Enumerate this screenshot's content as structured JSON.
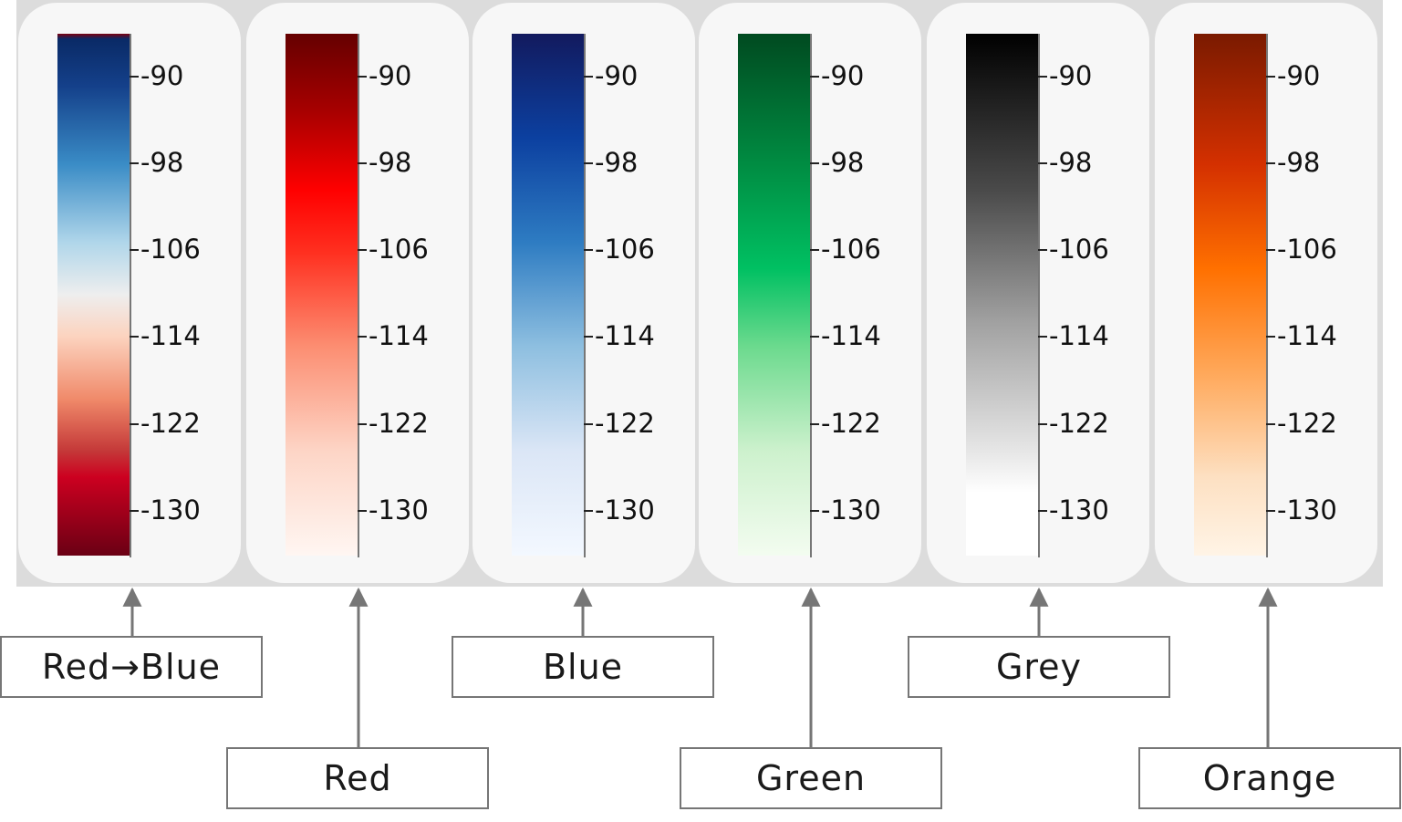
{
  "ticks": [
    "-90",
    "-98",
    "-106",
    "-114",
    "-122",
    "-130"
  ],
  "colorbars": [
    {
      "label": "Red→Blue",
      "stops": [
        [
          0,
          "#7a0010"
        ],
        [
          0.01,
          "#0a2a66"
        ],
        [
          0.1,
          "#14408a"
        ],
        [
          0.25,
          "#3a8cc6"
        ],
        [
          0.4,
          "#b0d6ea"
        ],
        [
          0.5,
          "#eeeeee"
        ],
        [
          0.58,
          "#fcd3bf"
        ],
        [
          0.7,
          "#f08a6a"
        ],
        [
          0.8,
          "#c43838"
        ],
        [
          0.85,
          "#cc0020"
        ],
        [
          1,
          "#6a0014"
        ]
      ]
    },
    {
      "label": "Red",
      "stops": [
        [
          0,
          "#650000"
        ],
        [
          0.15,
          "#a80000"
        ],
        [
          0.3,
          "#ff0000"
        ],
        [
          0.42,
          "#ff3020"
        ],
        [
          0.6,
          "#fc8e72"
        ],
        [
          0.8,
          "#fdd5c6"
        ],
        [
          1,
          "#fff6f2"
        ]
      ]
    },
    {
      "label": "Blue",
      "stops": [
        [
          0,
          "#121a5e"
        ],
        [
          0.2,
          "#0c40a0"
        ],
        [
          0.4,
          "#2e7cc2"
        ],
        [
          0.6,
          "#8ebfe0"
        ],
        [
          0.8,
          "#dbe6f6"
        ],
        [
          1,
          "#f3f8ff"
        ]
      ]
    },
    {
      "label": "Green",
      "stops": [
        [
          0,
          "#004a20"
        ],
        [
          0.25,
          "#008c42"
        ],
        [
          0.45,
          "#00c062"
        ],
        [
          0.6,
          "#6cda8e"
        ],
        [
          0.8,
          "#cdf1cd"
        ],
        [
          1,
          "#f3fcf0"
        ]
      ]
    },
    {
      "label": "Grey",
      "stops": [
        [
          0,
          "#000000"
        ],
        [
          0.3,
          "#4a4a4a"
        ],
        [
          0.55,
          "#a0a0a0"
        ],
        [
          0.8,
          "#e6e6e6"
        ],
        [
          0.88,
          "#ffffff"
        ],
        [
          1,
          "#ffffff"
        ]
      ]
    },
    {
      "label": "Orange",
      "stops": [
        [
          0,
          "#7a1a00"
        ],
        [
          0.25,
          "#d43000"
        ],
        [
          0.45,
          "#ff7000"
        ],
        [
          0.65,
          "#ffa85a"
        ],
        [
          0.85,
          "#fde0c2"
        ],
        [
          1,
          "#fff4e6"
        ]
      ]
    }
  ]
}
